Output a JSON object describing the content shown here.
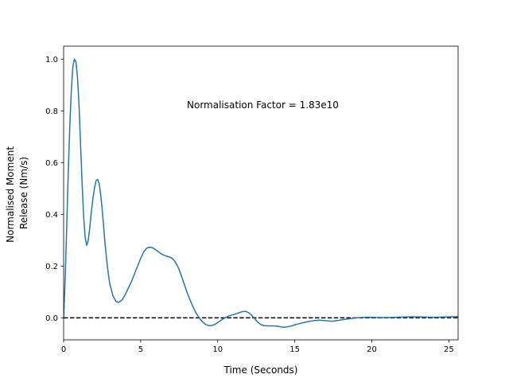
{
  "chart_data": {
    "type": "line",
    "title": "",
    "xlabel": "Time (Seconds)",
    "ylabel_lines": [
      "Normalised Moment",
      "Release (Nm/s)"
    ],
    "xlim": [
      0,
      25.6
    ],
    "ylim": [
      -0.085,
      1.05
    ],
    "xticks": [
      0,
      5,
      10,
      15,
      20,
      25
    ],
    "yticks": [
      0.0,
      0.2,
      0.4,
      0.6,
      0.8,
      1.0
    ],
    "ytick_labels": [
      "0.0",
      "0.2",
      "0.4",
      "0.6",
      "0.8",
      "1.0"
    ],
    "grid": false,
    "annotation": {
      "text": "Normalisation Factor = 1.83e10",
      "x": 8.0,
      "y": 0.82
    },
    "reference_line": {
      "y": 0.0,
      "style": "dashed",
      "color": "#000000"
    },
    "series": [
      {
        "color": "#1f77b4",
        "x": [
          0,
          0.1,
          0.2,
          0.3,
          0.4,
          0.5,
          0.6,
          0.7,
          0.8,
          0.9,
          1.0,
          1.1,
          1.2,
          1.3,
          1.4,
          1.5,
          1.6,
          1.7,
          1.8,
          1.9,
          2.0,
          2.1,
          2.2,
          2.3,
          2.4,
          2.5,
          2.6,
          2.7,
          2.8,
          2.9,
          3.0,
          3.2,
          3.4,
          3.6,
          3.8,
          4.0,
          4.2,
          4.4,
          4.6,
          4.8,
          5.0,
          5.2,
          5.4,
          5.6,
          5.8,
          6.0,
          6.2,
          6.4,
          6.6,
          6.8,
          7.0,
          7.2,
          7.4,
          7.6,
          7.8,
          8.0,
          8.2,
          8.4,
          8.6,
          8.8,
          9.0,
          9.2,
          9.4,
          9.6,
          9.8,
          10.0,
          10.2,
          10.4,
          10.6,
          10.8,
          11.0,
          11.2,
          11.4,
          11.6,
          11.8,
          12.0,
          12.2,
          12.4,
          12.6,
          12.8,
          13.0,
          13.2,
          13.4,
          13.6,
          13.8,
          14.0,
          14.2,
          14.4,
          14.6,
          14.8,
          15.0,
          15.2,
          15.4,
          15.6,
          15.8,
          16.0,
          16.2,
          16.4,
          16.6,
          16.8,
          17.0,
          17.2,
          17.4,
          17.6,
          17.8,
          18.0,
          18.5,
          19.0,
          19.5,
          20.0,
          20.5,
          21.0,
          21.5,
          22.0,
          22.5,
          23.0,
          23.5,
          24.0,
          24.5,
          25.0,
          25.6
        ],
        "y": [
          0.0,
          0.15,
          0.35,
          0.56,
          0.74,
          0.88,
          0.97,
          1.0,
          0.99,
          0.93,
          0.82,
          0.67,
          0.52,
          0.39,
          0.31,
          0.28,
          0.3,
          0.35,
          0.41,
          0.46,
          0.5,
          0.53,
          0.535,
          0.52,
          0.48,
          0.42,
          0.35,
          0.28,
          0.22,
          0.17,
          0.13,
          0.085,
          0.063,
          0.06,
          0.07,
          0.09,
          0.115,
          0.14,
          0.17,
          0.2,
          0.23,
          0.255,
          0.27,
          0.273,
          0.27,
          0.262,
          0.253,
          0.245,
          0.24,
          0.236,
          0.232,
          0.22,
          0.2,
          0.17,
          0.135,
          0.1,
          0.07,
          0.042,
          0.018,
          0.0,
          -0.015,
          -0.025,
          -0.03,
          -0.03,
          -0.026,
          -0.018,
          -0.01,
          -0.002,
          0.004,
          0.009,
          0.012,
          0.016,
          0.02,
          0.024,
          0.025,
          0.02,
          0.01,
          -0.003,
          -0.017,
          -0.026,
          -0.03,
          -0.031,
          -0.031,
          -0.031,
          -0.032,
          -0.034,
          -0.036,
          -0.036,
          -0.034,
          -0.031,
          -0.027,
          -0.024,
          -0.021,
          -0.018,
          -0.015,
          -0.013,
          -0.011,
          -0.01,
          -0.009,
          -0.01,
          -0.011,
          -0.012,
          -0.013,
          -0.012,
          -0.01,
          -0.008,
          -0.004,
          0.0,
          0.002,
          0.002,
          0.001,
          0.001,
          0.002,
          0.003,
          0.004,
          0.004,
          0.003,
          0.002,
          0.003,
          0.004,
          0.005
        ]
      }
    ]
  }
}
